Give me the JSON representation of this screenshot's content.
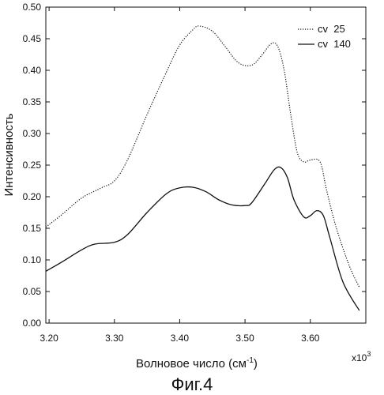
{
  "chart_data": {
    "type": "line",
    "xlabel": "Волновое число (см",
    "xlabel_sup": "-1",
    "xlabel_close": ")",
    "ylabel": "Интенсивность",
    "x_multiplier": "x10",
    "x_multiplier_exp": "3",
    "caption": "Фиг.4",
    "xlim": [
      3.195,
      3.685
    ],
    "ylim": [
      0.0,
      0.5
    ],
    "x_ticks": [
      "3.20",
      "3.30",
      "3.40",
      "3.50",
      "3.60"
    ],
    "y_ticks": [
      "0.00",
      "0.05",
      "0.10",
      "0.15",
      "0.20",
      "0.25",
      "0.30",
      "0.35",
      "0.40",
      "0.45",
      "0.50"
    ],
    "legend_position": "top-right",
    "grid": false,
    "series": [
      {
        "name": "cv  25",
        "style": "dotted",
        "color": "#111111",
        "x": [
          3.195,
          3.22,
          3.25,
          3.28,
          3.3,
          3.32,
          3.35,
          3.38,
          3.4,
          3.42,
          3.43,
          3.45,
          3.47,
          3.49,
          3.51,
          3.525,
          3.54,
          3.55,
          3.56,
          3.57,
          3.58,
          3.59,
          3.6,
          3.615,
          3.625,
          3.64,
          3.66,
          3.675
        ],
        "y": [
          0.152,
          0.172,
          0.198,
          0.214,
          0.225,
          0.258,
          0.33,
          0.398,
          0.44,
          0.464,
          0.47,
          0.462,
          0.437,
          0.412,
          0.408,
          0.423,
          0.442,
          0.438,
          0.4,
          0.33,
          0.27,
          0.255,
          0.258,
          0.255,
          0.21,
          0.15,
          0.09,
          0.057
        ]
      },
      {
        "name": "cv  140",
        "style": "solid",
        "color": "#111111",
        "x": [
          3.195,
          3.22,
          3.25,
          3.27,
          3.3,
          3.32,
          3.35,
          3.38,
          3.4,
          3.42,
          3.44,
          3.46,
          3.48,
          3.5,
          3.51,
          3.53,
          3.545,
          3.555,
          3.565,
          3.575,
          3.59,
          3.6,
          3.61,
          3.62,
          3.63,
          3.65,
          3.675
        ],
        "y": [
          0.082,
          0.097,
          0.116,
          0.125,
          0.128,
          0.14,
          0.175,
          0.205,
          0.214,
          0.215,
          0.208,
          0.195,
          0.187,
          0.186,
          0.19,
          0.22,
          0.243,
          0.246,
          0.23,
          0.195,
          0.168,
          0.17,
          0.178,
          0.17,
          0.135,
          0.065,
          0.02
        ]
      }
    ]
  }
}
